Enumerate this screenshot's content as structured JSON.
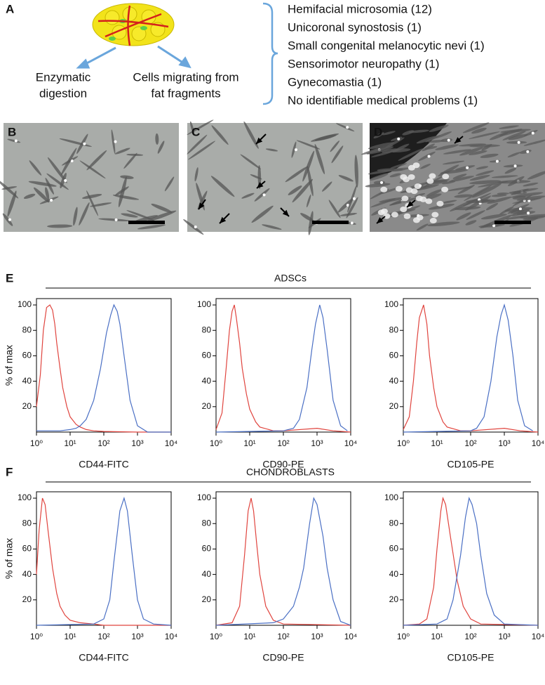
{
  "panel_a": {
    "label": "A",
    "methods": [
      [
        "Enzymatic",
        "digestion"
      ],
      [
        "Cells migrating from",
        "fat fragments"
      ]
    ],
    "conditions": [
      "Hemifacial microsomia (12)",
      "Unicoronal synostosis (1)",
      "Small congenital melanocytic nevi (1)",
      "Sensorimotor neuropathy (1)",
      "Gynecomastia (1)",
      "No identifiable medical problems (1)"
    ]
  },
  "images": [
    {
      "label": "B"
    },
    {
      "label": "C"
    },
    {
      "label": "D"
    }
  ],
  "sections": [
    {
      "label": "E",
      "title": "ADSCs"
    },
    {
      "label": "F",
      "title": "CHONDROBLASTS"
    }
  ],
  "chart_data": [
    {
      "type": "line",
      "xlabel": "CD44-FITC",
      "ylabel": "% of max",
      "xscale": "log",
      "xlim": [
        1,
        10000
      ],
      "ylim": [
        0,
        105
      ],
      "xticks": [
        {
          "value": 1,
          "label": "10⁰"
        },
        {
          "value": 10,
          "label": "10¹"
        },
        {
          "value": 100,
          "label": "10²"
        },
        {
          "value": 1000,
          "label": "10³"
        },
        {
          "value": 10000,
          "label": "10⁴"
        }
      ],
      "yticks": [
        20,
        40,
        60,
        80,
        100
      ],
      "series": [
        {
          "color": "#e0443e",
          "x": [
            1,
            1.3,
            1.6,
            2,
            2.5,
            3,
            3.5,
            4,
            5,
            6,
            8,
            10,
            15,
            20,
            30,
            50,
            100,
            1000,
            10000
          ],
          "values": [
            20,
            45,
            80,
            98,
            100,
            96,
            85,
            70,
            50,
            35,
            20,
            12,
            6,
            4,
            2,
            1,
            0.5,
            0,
            0
          ]
        },
        {
          "color": "#4a6fc4",
          "x": [
            1,
            5,
            10,
            15,
            20,
            30,
            50,
            80,
            120,
            160,
            200,
            250,
            300,
            400,
            600,
            1000,
            2000,
            10000
          ],
          "values": [
            1,
            1,
            2,
            3,
            5,
            10,
            25,
            50,
            78,
            92,
            100,
            95,
            85,
            60,
            25,
            5,
            0,
            0
          ]
        }
      ]
    },
    {
      "type": "line",
      "xlabel": "CD90-PE",
      "xscale": "log",
      "xlim": [
        1,
        10000
      ],
      "ylim": [
        0,
        105
      ],
      "xticks": [
        {
          "value": 1,
          "label": "10⁰"
        },
        {
          "value": 10,
          "label": "10¹"
        },
        {
          "value": 100,
          "label": "10²"
        },
        {
          "value": 1000,
          "label": "10³"
        },
        {
          "value": 10000,
          "label": "10⁴"
        }
      ],
      "yticks": [
        20,
        40,
        60,
        80,
        100
      ],
      "series": [
        {
          "color": "#e0443e",
          "x": [
            1,
            1.5,
            2,
            2.5,
            3,
            3.5,
            4,
            5,
            6,
            8,
            10,
            15,
            20,
            50,
            100,
            1000,
            3000,
            10000
          ],
          "values": [
            2,
            15,
            50,
            80,
            95,
            100,
            90,
            70,
            50,
            30,
            18,
            8,
            4,
            1,
            1,
            3,
            1,
            0
          ]
        },
        {
          "color": "#4a6fc4",
          "x": [
            1,
            100,
            200,
            300,
            500,
            700,
            900,
            1200,
            1500,
            2000,
            3000,
            5000,
            8000
          ],
          "values": [
            0,
            1,
            3,
            10,
            35,
            65,
            85,
            100,
            90,
            65,
            25,
            5,
            1
          ]
        }
      ]
    },
    {
      "type": "line",
      "xlabel": "CD105-PE",
      "xscale": "log",
      "xlim": [
        1,
        10000
      ],
      "ylim": [
        0,
        105
      ],
      "xticks": [
        {
          "value": 1,
          "label": "10⁰"
        },
        {
          "value": 10,
          "label": "10¹"
        },
        {
          "value": 100,
          "label": "10²"
        },
        {
          "value": 1000,
          "label": "10³"
        },
        {
          "value": 10000,
          "label": "10⁴"
        }
      ],
      "yticks": [
        20,
        40,
        60,
        80,
        100
      ],
      "series": [
        {
          "color": "#e0443e",
          "x": [
            1,
            1.5,
            2,
            2.5,
            3,
            4,
            5,
            6,
            8,
            10,
            15,
            20,
            50,
            100,
            1000,
            3000,
            10000
          ],
          "values": [
            2,
            12,
            40,
            70,
            90,
            100,
            85,
            60,
            35,
            20,
            8,
            4,
            1,
            1,
            3,
            1,
            0
          ]
        },
        {
          "color": "#4a6fc4",
          "x": [
            1,
            100,
            150,
            250,
            400,
            600,
            800,
            1000,
            1300,
            1800,
            2500,
            4000,
            7000
          ],
          "values": [
            0,
            1,
            3,
            12,
            40,
            75,
            92,
            100,
            88,
            60,
            25,
            5,
            1
          ]
        }
      ]
    },
    {
      "type": "line",
      "xlabel": "CD44-FITC",
      "ylabel": "% of max",
      "xscale": "log",
      "xlim": [
        1,
        10000
      ],
      "ylim": [
        0,
        105
      ],
      "xticks": [
        {
          "value": 1,
          "label": "10⁰"
        },
        {
          "value": 10,
          "label": "10¹"
        },
        {
          "value": 100,
          "label": "10²"
        },
        {
          "value": 1000,
          "label": "10³"
        },
        {
          "value": 10000,
          "label": "10⁴"
        }
      ],
      "yticks": [
        20,
        40,
        60,
        80,
        100
      ],
      "series": [
        {
          "color": "#e0443e",
          "x": [
            1,
            1.2,
            1.5,
            1.8,
            2.2,
            3,
            4,
            5,
            7,
            10,
            20,
            50,
            100,
            10000
          ],
          "values": [
            40,
            75,
            100,
            95,
            75,
            45,
            25,
            15,
            8,
            4,
            2,
            1,
            0,
            0
          ]
        },
        {
          "color": "#4a6fc4",
          "x": [
            1,
            50,
            100,
            150,
            200,
            300,
            400,
            500,
            700,
            1000,
            1500,
            3000,
            10000
          ],
          "values": [
            0,
            1,
            5,
            20,
            50,
            90,
            100,
            90,
            55,
            20,
            5,
            1,
            0
          ]
        }
      ]
    },
    {
      "type": "line",
      "xlabel": "CD90-PE",
      "xscale": "log",
      "xlim": [
        1,
        10000
      ],
      "ylim": [
        0,
        105
      ],
      "xticks": [
        {
          "value": 1,
          "label": "10⁰"
        },
        {
          "value": 10,
          "label": "10¹"
        },
        {
          "value": 100,
          "label": "10²"
        },
        {
          "value": 1000,
          "label": "10³"
        },
        {
          "value": 10000,
          "label": "10⁴"
        }
      ],
      "yticks": [
        20,
        40,
        60,
        80,
        100
      ],
      "series": [
        {
          "color": "#e0443e",
          "x": [
            1,
            3,
            5,
            7,
            9,
            11,
            13,
            16,
            20,
            30,
            50,
            100,
            10000
          ],
          "values": [
            0,
            2,
            15,
            55,
            90,
            100,
            90,
            65,
            40,
            15,
            4,
            1,
            0
          ]
        },
        {
          "color": "#4a6fc4",
          "x": [
            1,
            50,
            100,
            200,
            300,
            400,
            600,
            800,
            1000,
            1500,
            2000,
            3000,
            5000,
            10000
          ],
          "values": [
            0,
            2,
            5,
            15,
            30,
            45,
            80,
            100,
            95,
            70,
            45,
            20,
            3,
            0
          ]
        }
      ]
    },
    {
      "type": "line",
      "xlabel": "CD105-PE",
      "xscale": "log",
      "xlim": [
        1,
        10000
      ],
      "ylim": [
        0,
        105
      ],
      "xticks": [
        {
          "value": 1,
          "label": "10⁰"
        },
        {
          "value": 10,
          "label": "10¹"
        },
        {
          "value": 100,
          "label": "10²"
        },
        {
          "value": 1000,
          "label": "10³"
        },
        {
          "value": 10000,
          "label": "10⁴"
        }
      ],
      "yticks": [
        20,
        40,
        60,
        80,
        100
      ],
      "series": [
        {
          "color": "#e0443e",
          "x": [
            1,
            3,
            5,
            8,
            10,
            13,
            15,
            18,
            25,
            40,
            60,
            100,
            200,
            10000
          ],
          "values": [
            0,
            1,
            5,
            30,
            60,
            90,
            100,
            95,
            70,
            35,
            15,
            5,
            1,
            0
          ]
        },
        {
          "color": "#4a6fc4",
          "x": [
            1,
            10,
            20,
            30,
            50,
            70,
            90,
            110,
            150,
            200,
            300,
            500,
            1000,
            10000
          ],
          "values": [
            0,
            1,
            5,
            20,
            55,
            85,
            100,
            95,
            80,
            55,
            25,
            8,
            1,
            0
          ]
        }
      ]
    }
  ]
}
